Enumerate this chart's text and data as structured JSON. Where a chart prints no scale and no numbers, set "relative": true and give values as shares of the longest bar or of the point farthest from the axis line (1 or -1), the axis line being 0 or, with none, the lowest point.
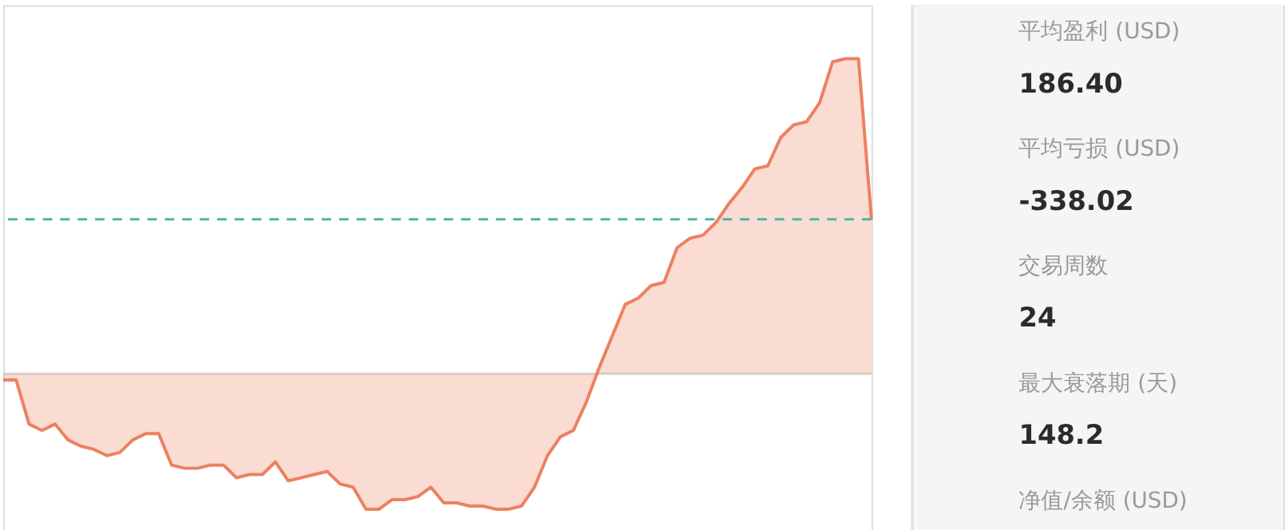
{
  "chart_data": [
    {
      "type": "area",
      "relative": true,
      "categories": [
        null,
        null,
        null,
        null,
        null,
        null,
        null,
        null,
        null,
        null,
        null,
        null,
        null,
        null,
        null,
        null,
        null,
        null,
        null,
        null,
        null,
        null,
        null,
        null,
        null,
        null,
        null,
        null,
        null,
        null,
        null,
        null,
        null,
        null,
        null,
        null,
        null,
        null,
        null,
        null,
        null,
        null,
        null,
        null,
        null,
        null,
        null,
        null,
        null,
        null,
        null,
        null,
        null,
        null,
        null,
        null,
        null,
        null,
        null,
        null,
        null,
        null,
        null,
        null,
        null,
        null,
        null,
        null
      ],
      "series": [
        {
          "color": "#ec8160",
          "values": [
            -0.02,
            -0.02,
            -0.16,
            -0.18,
            -0.16,
            -0.21,
            -0.23,
            -0.24,
            -0.26,
            -0.25,
            -0.21,
            -0.19,
            -0.19,
            -0.29,
            -0.3,
            -0.3,
            -0.29,
            -0.29,
            -0.33,
            -0.32,
            -0.32,
            -0.28,
            -0.34,
            -0.33,
            -0.32,
            -0.31,
            -0.35,
            -0.36,
            -0.43,
            -0.43,
            -0.4,
            -0.4,
            -0.39,
            -0.36,
            -0.41,
            -0.41,
            -0.42,
            -0.42,
            -0.43,
            -0.43,
            -0.42,
            -0.36,
            -0.26,
            -0.2,
            -0.18,
            -0.09,
            0.02,
            0.12,
            0.22,
            0.24,
            0.28,
            0.29,
            0.4,
            0.43,
            0.44,
            0.48,
            0.54,
            0.59,
            0.65,
            0.66,
            0.75,
            0.79,
            0.8,
            0.86,
            0.99,
            1,
            1,
            0.49
          ]
        }
      ],
      "ref_lines": [
        {
          "axis": "y",
          "value": 0.49,
          "color": "#4fb5a5",
          "line_style": "dashed"
        }
      ]
    },
    {
      "type": "other",
      "annotations": [
        "平均盈利 (USD)",
        "186.40",
        "平均亏损 (USD)",
        "-338.02",
        "交易周数",
        "24",
        "最大衰落期 (天)",
        "148.2",
        "净值/余额 (USD)"
      ]
    }
  ]
}
